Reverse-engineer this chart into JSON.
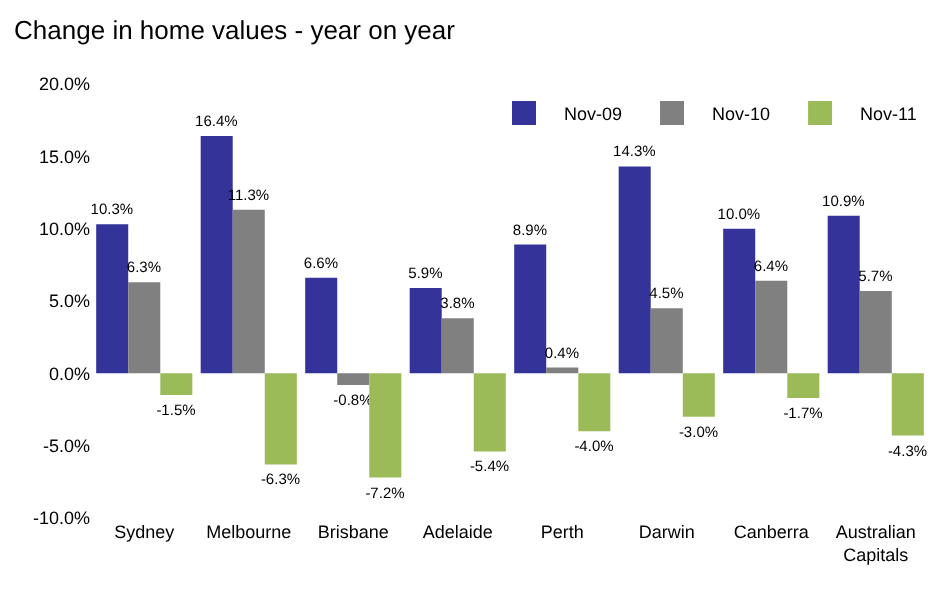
{
  "chart_data": {
    "type": "bar",
    "title": "Change in home values - year on year",
    "categories": [
      "Sydney",
      "Melbourne",
      "Brisbane",
      "Adelaide",
      "Perth",
      "Darwin",
      "Canberra",
      "Australian Capitals"
    ],
    "series": [
      {
        "name": "Nov-09",
        "color": "#333399",
        "values": [
          10.3,
          16.4,
          6.6,
          5.9,
          8.9,
          14.3,
          10.0,
          10.9
        ],
        "value_labels": [
          "10.3%",
          "16.4%",
          "6.6%",
          "5.9%",
          "8.9%",
          "14.3%",
          "10.0%",
          "10.9%"
        ]
      },
      {
        "name": "Nov-10",
        "color": "#808080",
        "values": [
          6.3,
          11.3,
          -0.8,
          3.8,
          0.4,
          4.5,
          6.4,
          5.7
        ],
        "value_labels": [
          "6.3%",
          "11.3%",
          "-0.8%",
          "3.8%",
          "0.4%",
          "4.5%",
          "6.4%",
          "5.7%"
        ]
      },
      {
        "name": "Nov-11",
        "color": "#9bbb59",
        "values": [
          -1.5,
          -6.3,
          -7.2,
          -5.4,
          -4.0,
          -3.0,
          -1.7,
          -4.3
        ],
        "value_labels": [
          "-1.5%",
          "-6.3%",
          "-7.2%",
          "-5.4%",
          "-4.0%",
          "-3.0%",
          "-1.7%",
          "-4.3%"
        ]
      }
    ],
    "ylim": [
      -10,
      20
    ],
    "yticks": [
      {
        "value": -10,
        "label": "-10.0%"
      },
      {
        "value": -5,
        "label": "-5.0%"
      },
      {
        "value": 0,
        "label": "0.0%"
      },
      {
        "value": 5,
        "label": "5.0%"
      },
      {
        "value": 10,
        "label": "10.0%"
      },
      {
        "value": 15,
        "label": "15.0%"
      },
      {
        "value": 20,
        "label": "20.0%"
      }
    ],
    "grid": false,
    "legend": "top right"
  }
}
